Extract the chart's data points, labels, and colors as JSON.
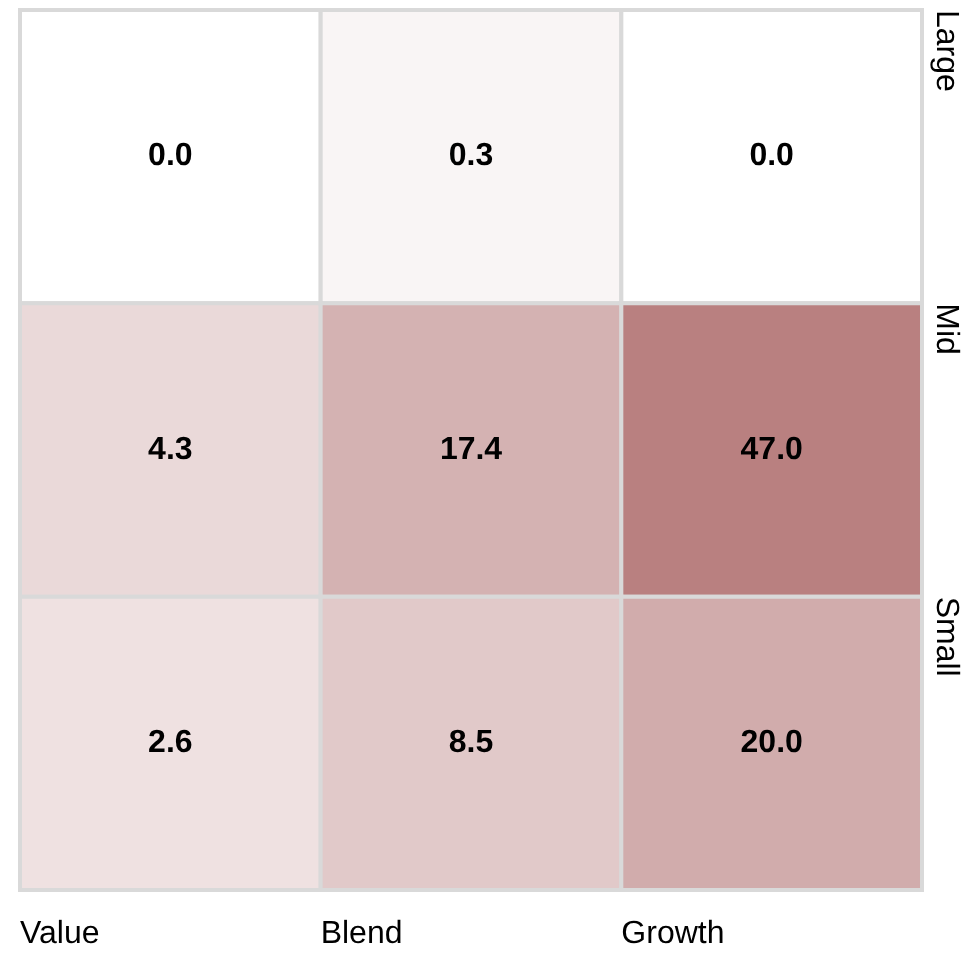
{
  "chart_data": {
    "type": "heatmap",
    "categories": [
      "Value",
      "Blend",
      "Growth"
    ],
    "y_categories": [
      "Large",
      "Mid",
      "Small"
    ],
    "cells": [
      [
        0.0,
        0.3,
        0.0
      ],
      [
        4.3,
        17.4,
        47.0
      ],
      [
        2.6,
        8.5,
        20.0
      ]
    ],
    "cell_labels": [
      [
        "0.0",
        "0.3",
        "0.0"
      ],
      [
        "4.3",
        "17.4",
        "47.0"
      ],
      [
        "2.6",
        "8.5",
        "20.0"
      ]
    ],
    "color": "#b98080"
  }
}
